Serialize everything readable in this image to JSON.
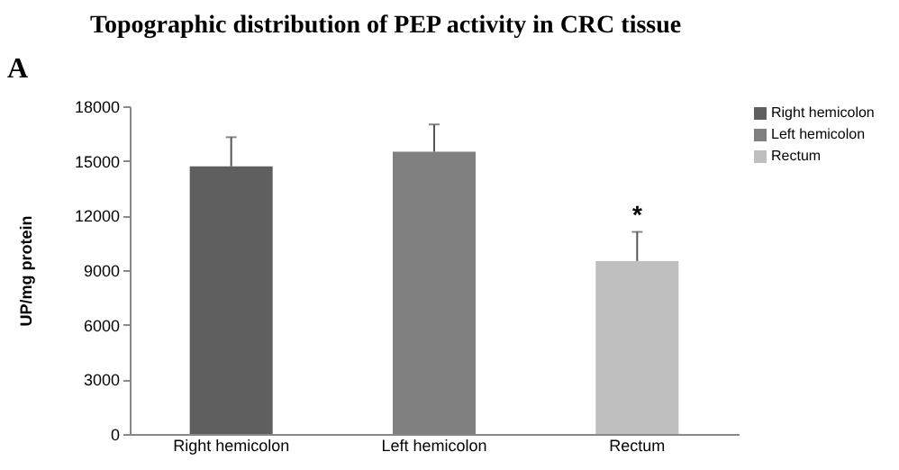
{
  "chart_data": {
    "type": "bar",
    "title": "Topographic distribution of PEP activity in CRC tissue",
    "ylabel": "UP/mg protein",
    "categories": [
      "Right hemicolon",
      "Left hemicolon",
      "Rectum"
    ],
    "series": [
      {
        "name": "Right hemicolon",
        "color": "#5f5f5f",
        "values": [
          14700,
          null,
          null
        ],
        "errors": [
          [
            14700,
            16300
          ],
          null,
          null
        ]
      },
      {
        "name": "Left hemicolon",
        "color": "#808080",
        "values": [
          null,
          15500,
          null
        ],
        "errors": [
          null,
          [
            15500,
            17000
          ],
          null
        ]
      },
      {
        "name": "Rectum",
        "color": "#bfbfbf",
        "values": [
          null,
          null,
          9500
        ],
        "errors": [
          null,
          null,
          [
            9500,
            11100
          ]
        ]
      }
    ],
    "ylim": [
      0,
      18000
    ],
    "yticks": [
      0,
      3000,
      6000,
      9000,
      12000,
      15000,
      18000
    ],
    "legend": "right",
    "grid": false,
    "annotations": [
      "A",
      {
        "text": "*",
        "x": "Rectum",
        "y": 11100
      }
    ]
  }
}
